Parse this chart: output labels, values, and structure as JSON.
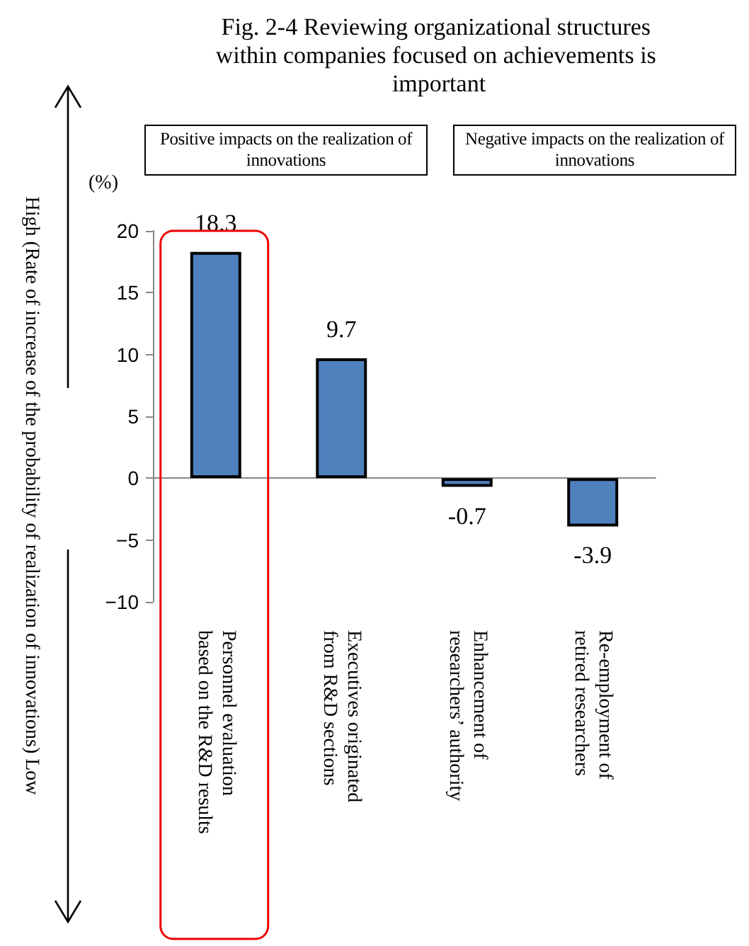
{
  "chart_data": {
    "type": "bar",
    "title": "Fig. 2-4 Reviewing organizational structures within companies focused on achievements is important",
    "ylabel": "High (Rate of increase of the probability of realization of innovations) Low",
    "annotations": [
      "(%)",
      "Positive impacts on the realization of innovations",
      "Negative impacts on the realization of innovations"
    ],
    "categories": [
      "Personnel evaluation\nbased on the R&D results",
      "Executives originated\nfrom R&D sections",
      "Enhancement of\nresearchers’ authority",
      "Re-employment of\nretired researchers"
    ],
    "values": [
      18.3,
      9.7,
      -0.7,
      -3.9
    ],
    "color": "#4f81bd",
    "ylim": [
      -10,
      20
    ],
    "yticks": [
      -10,
      -5,
      0,
      5,
      10,
      15,
      20
    ],
    "data_labels": true
  }
}
